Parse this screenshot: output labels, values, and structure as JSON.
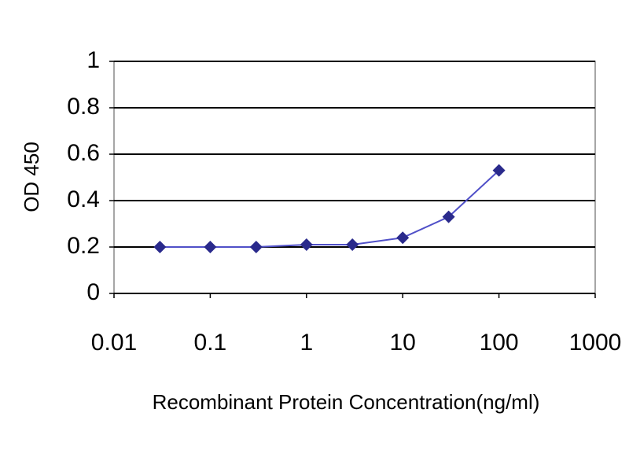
{
  "chart_data": {
    "type": "line",
    "x_label": "Recombinant Protein Concentration(ng/ml)",
    "y_label": "OD 450",
    "x": [
      0.03,
      0.1,
      0.3,
      1,
      3,
      10,
      30,
      100
    ],
    "values": [
      0.2,
      0.2,
      0.2,
      0.21,
      0.21,
      0.24,
      0.33,
      0.53
    ],
    "color": "#2a2a8c",
    "line_color": "#5050c8",
    "xscale": "log",
    "xlim": [
      0.01,
      1000
    ],
    "xticks": [
      0.01,
      0.1,
      1,
      10,
      100,
      1000
    ],
    "ylim": [
      0,
      1
    ],
    "yticks": [
      0,
      0.2,
      0.4,
      0.6,
      0.8,
      1
    ],
    "grid": true
  }
}
